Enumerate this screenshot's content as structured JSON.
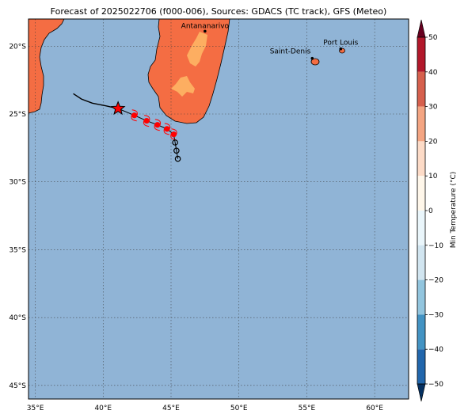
{
  "title": "Forecast of 2025022706 (f000-006), Sources: GDACS (TC track), GFS (Meteo)",
  "colors": {
    "ocean": "#90b4d6",
    "land_hot": "#f46d43",
    "land_warm": "#fdae61",
    "track": "#000000",
    "storm_marker": "#ff0000"
  },
  "map": {
    "lon_ticks": [
      "35°E",
      "40°E",
      "45°E",
      "50°E",
      "55°E",
      "60°E"
    ],
    "lat_ticks": [
      "20°S",
      "25°S",
      "30°S",
      "35°S",
      "40°S",
      "45°S"
    ],
    "cities": [
      {
        "name": "Antananarivo",
        "lon": 47.5,
        "lat": -18.9
      },
      {
        "name": "Port Louis",
        "lon": 57.5,
        "lat": -20.2
      },
      {
        "name": "Saint-Denis",
        "lon": 55.4,
        "lat": -20.9
      }
    ],
    "extent": {
      "lon_min": 34.5,
      "lon_max": 62.5,
      "lat_min": -46,
      "lat_max": -18
    }
  },
  "colorbar": {
    "label": "Min Temperature (°C)",
    "ticks": [
      "50",
      "40",
      "30",
      "20",
      "10",
      "0",
      "−10",
      "−20",
      "−30",
      "−40",
      "−50"
    ],
    "bands": [
      "#67001f",
      "#b2182b",
      "#d6604d",
      "#f4a582",
      "#fddbc7",
      "#fff7ea",
      "#eaf6fb",
      "#d1e5f0",
      "#92c5de",
      "#4393c3",
      "#2166ac",
      "#053061"
    ]
  },
  "track": {
    "past_track": [
      [
        37.8,
        -23.5
      ],
      [
        38.4,
        -23.9
      ],
      [
        39.2,
        -24.2
      ],
      [
        40.2,
        -24.4
      ],
      [
        41.1,
        -24.6
      ]
    ],
    "current_position": [
      41.1,
      -24.6
    ],
    "forecast_track": [
      [
        42.3,
        -25.1
      ],
      [
        43.2,
        -25.5
      ],
      [
        44.0,
        -25.8
      ],
      [
        44.7,
        -26.1
      ],
      [
        45.2,
        -26.5
      ],
      [
        45.3,
        -27.1
      ],
      [
        45.4,
        -27.7
      ],
      [
        45.5,
        -28.3
      ]
    ]
  }
}
